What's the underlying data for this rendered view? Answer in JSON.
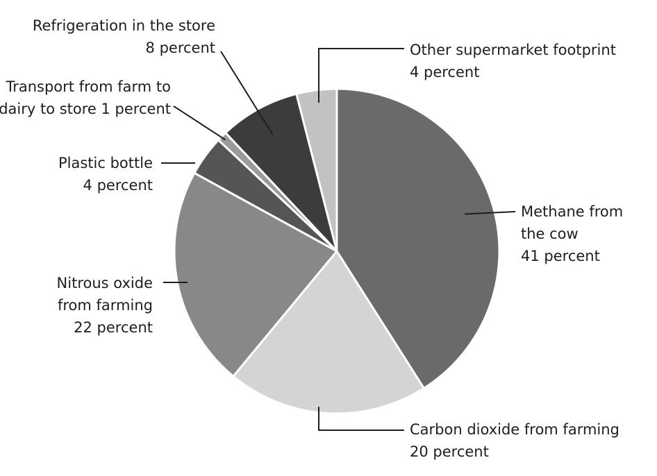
{
  "chart_data": {
    "type": "pie",
    "title": "",
    "slices": [
      {
        "label_lines": [
          "Methane from",
          "the cow",
          "41 percent"
        ],
        "value": 41,
        "color": "#6a6a6a"
      },
      {
        "label_lines": [
          "Carbon dioxide from farming",
          "20 percent"
        ],
        "value": 20,
        "color": "#d4d4d4"
      },
      {
        "label_lines": [
          "Nitrous oxide",
          "from farming",
          "22 percent"
        ],
        "value": 22,
        "color": "#888888"
      },
      {
        "label_lines": [
          "Plastic bottle",
          "4 percent"
        ],
        "value": 4,
        "color": "#555555"
      },
      {
        "label_lines": [
          "Transport from farm to",
          "dairy to store 1 percent"
        ],
        "value": 1,
        "color": "#9a9a9a"
      },
      {
        "label_lines": [
          "Refrigeration in the store",
          "8 percent"
        ],
        "value": 8,
        "color": "#3c3c3c"
      },
      {
        "label_lines": [
          "Other supermarket footprint",
          "4 percent"
        ],
        "value": 4,
        "color": "#c2c2c2"
      }
    ]
  }
}
